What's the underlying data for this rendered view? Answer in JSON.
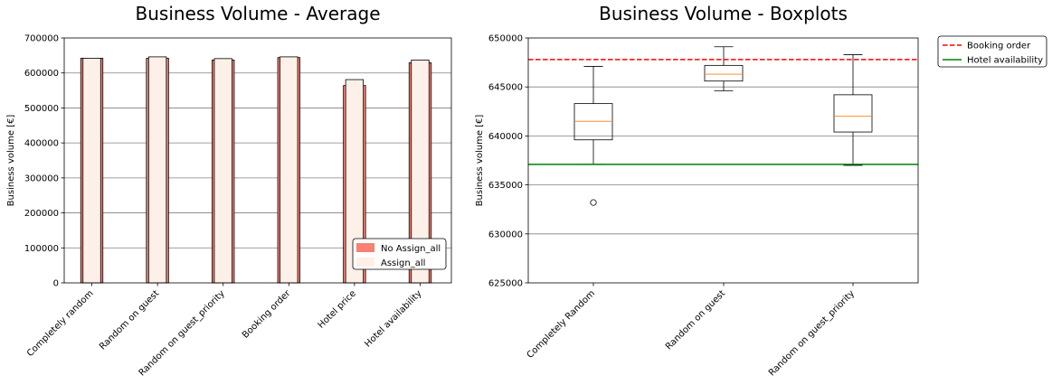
{
  "chart_data": [
    {
      "type": "bar",
      "title": "Business Volume - Average",
      "xlabel": "",
      "ylabel": "Business volume [€]",
      "ylim": [
        0,
        700000
      ],
      "yticks": [
        0,
        100000,
        200000,
        300000,
        400000,
        500000,
        600000,
        700000
      ],
      "grid": "y",
      "legend_position": "lower-right",
      "categories": [
        "Completely random",
        "Random on guest",
        "Random on guest_priority",
        "Booking order",
        "Hotel price",
        "Hotel availability"
      ],
      "series": [
        {
          "name": "No Assign_all",
          "color": "#fa8072",
          "values": [
            642000,
            642000,
            637000,
            644000,
            564000,
            629000
          ]
        },
        {
          "name": "Assign_all",
          "color": "#fdf0e8",
          "values": [
            642000,
            646000,
            641000,
            646000,
            581000,
            637000
          ]
        }
      ]
    },
    {
      "type": "boxplot",
      "title": "Business Volume - Boxplots",
      "xlabel": "",
      "ylabel": "Business volume [€]",
      "ylim": [
        625000,
        650000
      ],
      "yticks": [
        625000,
        630000,
        635000,
        640000,
        645000,
        650000
      ],
      "grid": "y",
      "legend_position": "outside-top-right",
      "categories": [
        "Completely Random",
        "Random on guest",
        "Random on guest_priority"
      ],
      "boxes": [
        {
          "whisker_low": 637100,
          "q1": 639600,
          "median": 641500,
          "q3": 643300,
          "whisker_high": 647100,
          "outliers": [
            633200
          ]
        },
        {
          "whisker_low": 644600,
          "q1": 645600,
          "median": 646300,
          "q3": 647200,
          "whisker_high": 649100,
          "outliers": []
        },
        {
          "whisker_low": 637000,
          "q1": 640400,
          "median": 642000,
          "q3": 644200,
          "whisker_high": 648300,
          "outliers": []
        }
      ],
      "reference_lines": [
        {
          "name": "Booking order",
          "value": 647800,
          "color": "#ff0000",
          "style": "dashed"
        },
        {
          "name": "Hotel availability",
          "value": 637100,
          "color": "#008000",
          "style": "solid"
        }
      ]
    }
  ]
}
